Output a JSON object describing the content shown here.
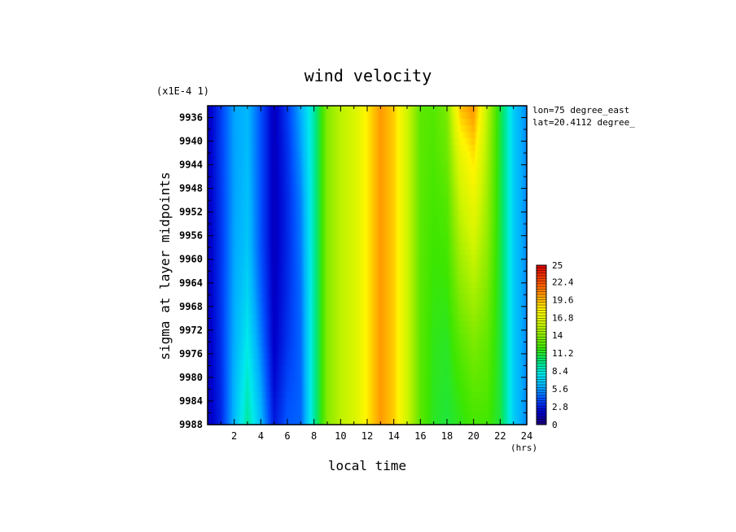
{
  "chart_data": {
    "type": "heatmap",
    "title": "wind velocity",
    "xlabel": "local time",
    "ylabel": "sigma at layer midpoints",
    "y_scale_note": "(x1E-4 1)",
    "x_units": "(hrs)",
    "annotations": [
      "lon=75 degree_east",
      "lat=20.4112 degree_"
    ],
    "x_ticks": [
      "2",
      "4",
      "6",
      "8",
      "10",
      "12",
      "14",
      "16",
      "18",
      "20",
      "22",
      "24"
    ],
    "y_ticks": [
      "9936",
      "9940",
      "9944",
      "9948",
      "9952",
      "9956",
      "9960",
      "9964",
      "9968",
      "9972",
      "9976",
      "9980",
      "9984",
      "9988"
    ],
    "xlim": [
      0,
      24
    ],
    "ylim": [
      9934,
      9988
    ],
    "colorbar": {
      "min": 0,
      "max": 25,
      "tick_labels": [
        "25",
        "22.4",
        "19.6",
        "16.8",
        "14",
        "11.2",
        "8.4",
        "5.6",
        "2.8",
        "0"
      ]
    },
    "x": [
      0,
      1,
      2,
      3,
      4,
      5,
      6,
      7,
      8,
      9,
      10,
      11,
      12,
      13,
      14,
      15,
      16,
      17,
      18,
      19,
      20,
      21,
      22,
      23,
      24
    ],
    "y": [
      9934,
      9942,
      9950,
      9958,
      9966,
      9974,
      9982,
      9988
    ],
    "z": [
      [
        1.5,
        3.5,
        5.8,
        6.3,
        4.0,
        1.6,
        3.5,
        6.0,
        9.2,
        13.8,
        15.4,
        16.2,
        18.2,
        20.3,
        19.0,
        16.0,
        12.8,
        12.6,
        13.6,
        19.4,
        20.6,
        15.5,
        11.0,
        7.0,
        5.2
      ],
      [
        1.5,
        3.5,
        5.7,
        6.4,
        4.0,
        1.6,
        3.2,
        5.5,
        9.2,
        13.8,
        15.4,
        16.2,
        18.2,
        20.3,
        19.0,
        16.0,
        12.8,
        12.4,
        13.2,
        17.0,
        18.6,
        15.0,
        11.0,
        7.0,
        5.2
      ],
      [
        1.5,
        3.4,
        5.7,
        6.6,
        4.0,
        1.6,
        3.0,
        5.0,
        9.2,
        13.8,
        15.4,
        16.2,
        18.2,
        20.3,
        19.0,
        16.0,
        12.8,
        12.2,
        12.6,
        15.8,
        17.2,
        14.6,
        11.0,
        7.0,
        5.2
      ],
      [
        1.5,
        3.3,
        5.8,
        6.8,
        4.0,
        1.6,
        3.0,
        4.8,
        9.2,
        13.8,
        15.4,
        16.2,
        18.2,
        20.3,
        19.0,
        16.0,
        12.8,
        12.0,
        12.2,
        14.8,
        16.0,
        14.2,
        11.0,
        7.0,
        5.2
      ],
      [
        1.5,
        3.3,
        5.9,
        7.3,
        4.4,
        1.7,
        3.1,
        4.6,
        9.2,
        13.8,
        15.4,
        16.2,
        18.2,
        20.3,
        19.0,
        16.0,
        12.8,
        11.8,
        11.8,
        13.8,
        14.8,
        13.6,
        11.0,
        7.0,
        5.2
      ],
      [
        1.5,
        3.2,
        6.0,
        8.0,
        5.0,
        1.8,
        3.3,
        4.5,
        9.2,
        13.8,
        15.4,
        16.2,
        18.2,
        20.3,
        19.0,
        16.0,
        12.8,
        11.6,
        11.4,
        12.8,
        13.6,
        13.0,
        11.0,
        7.0,
        5.2
      ],
      [
        1.5,
        3.0,
        6.2,
        8.8,
        5.8,
        2.2,
        3.8,
        4.4,
        9.2,
        13.8,
        15.4,
        16.2,
        18.2,
        20.3,
        19.0,
        16.0,
        12.8,
        11.5,
        11.2,
        12.0,
        12.8,
        12.6,
        11.0,
        7.0,
        5.2
      ],
      [
        1.5,
        2.9,
        6.3,
        9.4,
        6.4,
        2.6,
        4.2,
        4.4,
        9.2,
        13.8,
        15.4,
        16.2,
        18.2,
        20.3,
        19.0,
        16.0,
        12.8,
        11.4,
        11.0,
        11.6,
        12.2,
        12.2,
        11.0,
        7.0,
        5.2
      ]
    ]
  }
}
